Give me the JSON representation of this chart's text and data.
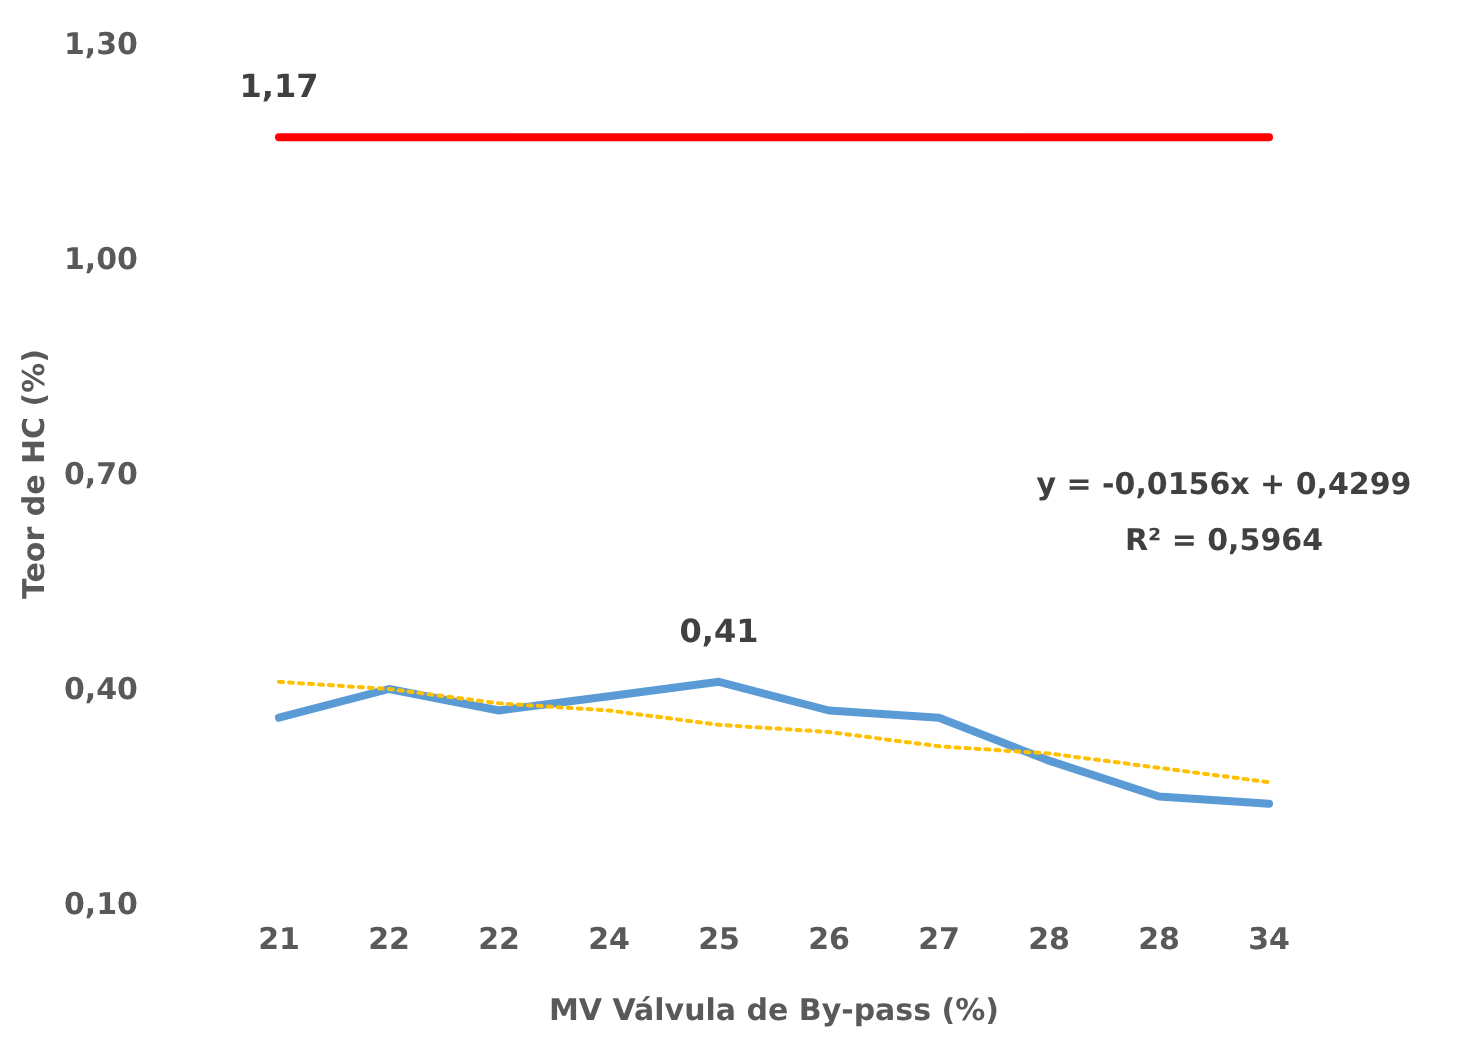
{
  "chart_data": {
    "type": "line",
    "xlabel": "MV Válvula de By-pass (%)",
    "ylabel": "Teor de HC (%)",
    "categories": [
      "21",
      "22",
      "22",
      "24",
      "25",
      "26",
      "27",
      "28",
      "28",
      "34"
    ],
    "ylim": [
      0.1,
      1.3
    ],
    "yticks": [
      {
        "value": 0.1,
        "label": "0,10"
      },
      {
        "value": 0.4,
        "label": "0,40"
      },
      {
        "value": 0.7,
        "label": "0,70"
      },
      {
        "value": 1.0,
        "label": "1,00"
      },
      {
        "value": 1.3,
        "label": "1,30"
      }
    ],
    "grid": false,
    "marker": "none",
    "series": [
      {
        "color": "#ff0000",
        "values": [
          1.17,
          1.17,
          1.17,
          1.17,
          1.17,
          1.17,
          1.17,
          1.17,
          1.17,
          1.17
        ],
        "value_labels": [
          "1,17",
          null,
          null,
          null,
          null,
          null,
          null,
          null,
          null,
          null
        ]
      },
      {
        "color": "#5b9bd5",
        "values": [
          0.36,
          0.4,
          0.37,
          0.39,
          0.41,
          0.37,
          0.36,
          0.3,
          0.25,
          0.24
        ],
        "value_labels": [
          null,
          null,
          null,
          null,
          "0,41",
          null,
          null,
          null,
          null,
          null
        ]
      },
      {
        "color": "#ffc000",
        "line_style": "dotted",
        "values": [
          0.41,
          0.4,
          0.38,
          0.37,
          0.35,
          0.34,
          0.32,
          0.31,
          0.29,
          0.27
        ]
      }
    ],
    "annotations": [
      "y = -0,0156x + 0,4299",
      "R² = 0,5964"
    ]
  }
}
